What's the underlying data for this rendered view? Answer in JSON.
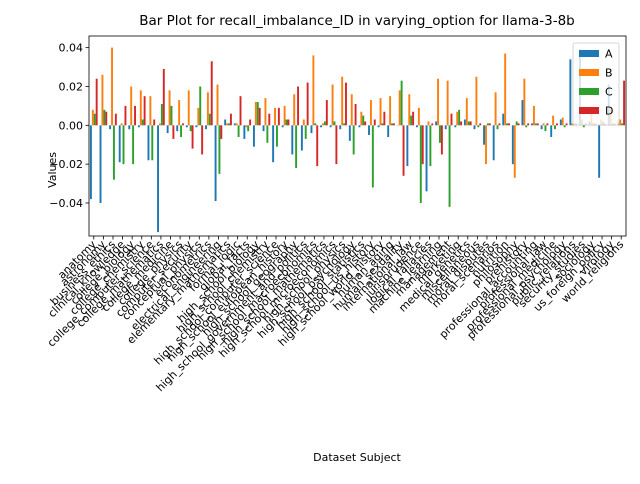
{
  "chart_data": {
    "type": "bar",
    "title": "Bar Plot for recall_imbalance_ID in varying_option for llama-3-8b",
    "xlabel": "Dataset Subject",
    "ylabel": "Values",
    "ylim": [
      -0.057,
      0.046
    ],
    "yticks": [
      -0.04,
      -0.02,
      0.0,
      0.02,
      0.04
    ],
    "ytick_labels": [
      "−0.04",
      "−0.02",
      "0.00",
      "0.02",
      "0.04"
    ],
    "legend_position": "upper right",
    "categories": [
      "anatomy",
      "astronomy",
      "business_ethics",
      "clinical_knowledge",
      "college_biology",
      "college_chemistry",
      "college_computer_science",
      "college_mathematics",
      "college_medicine",
      "college_physics",
      "computer_security",
      "conceptual_physics",
      "econometrics",
      "electrical_engineering",
      "elementary_mathematics",
      "formal_logic",
      "global_facts",
      "high_school_biology",
      "high_school_chemistry",
      "high_school_computer_science",
      "high_school_european_history",
      "high_school_geography",
      "high_school_government_and_politics",
      "high_school_macroeconomics",
      "high_school_mathematics",
      "high_school_microeconomics",
      "high_school_physics",
      "high_school_psychology",
      "high_school_statistics",
      "high_school_us_history",
      "high_school_world_history",
      "human_aging",
      "human_sexuality",
      "international_law",
      "jurisprudence",
      "logical_fallacies",
      "machine_learning",
      "management",
      "marketing",
      "medical_genetics",
      "miscellaneous",
      "moral_disputes",
      "moral_scenarios",
      "nutrition",
      "philosophy",
      "prehistory",
      "professional_accounting",
      "professional_law",
      "professional_medicine",
      "professional_psychology",
      "public_relations",
      "security_studies",
      "sociology",
      "us_foreign_policy",
      "virology",
      "world_religions"
    ],
    "series": [
      {
        "name": "A",
        "color": "#1f77b4",
        "values": [
          -0.038,
          -0.04,
          -0.002,
          -0.019,
          -0.002,
          -0.001,
          -0.018,
          -0.055,
          -0.004,
          -0.003,
          -0.001,
          -0.001,
          -0.002,
          -0.039,
          0.003,
          0.001,
          -0.007,
          -0.011,
          -0.003,
          -0.019,
          -0.001,
          -0.015,
          -0.013,
          -0.004,
          -0.001,
          -0.001,
          -0.002,
          -0.008,
          -0.001,
          -0.005,
          -0.001,
          -0.006,
          0.0,
          -0.021,
          -0.001,
          -0.034,
          0.002,
          -0.002,
          -0.001,
          0.003,
          -0.002,
          -0.01,
          -0.018,
          0.006,
          -0.02,
          0.013,
          0.001,
          -0.002,
          -0.006,
          0.003,
          0.034,
          0.039,
          0.002,
          -0.027,
          0.021,
          0.002
        ]
      },
      {
        "name": "B",
        "color": "#ff7f0e",
        "values": [
          0.008,
          0.026,
          0.04,
          0.001,
          0.02,
          0.018,
          0.015,
          0.001,
          0.018,
          0.013,
          0.018,
          0.009,
          0.017,
          0.021,
          0.001,
          0.001,
          -0.001,
          0.012,
          0.014,
          0.009,
          0.01,
          0.016,
          0.003,
          0.036,
          0.001,
          0.021,
          0.025,
          0.016,
          0.007,
          0.013,
          0.014,
          0.015,
          0.018,
          0.016,
          0.009,
          0.002,
          0.024,
          0.023,
          0.007,
          0.014,
          0.025,
          -0.02,
          0.017,
          0.037,
          -0.027,
          0.024,
          0.01,
          0.001,
          0.005,
          0.004,
          0.001,
          0.003,
          0.009,
          0.003,
          0.009,
          0.003
        ]
      },
      {
        "name": "C",
        "color": "#2ca02c",
        "values": [
          0.006,
          0.008,
          -0.028,
          -0.02,
          -0.02,
          0.003,
          -0.018,
          0.011,
          0.01,
          -0.006,
          -0.003,
          0.02,
          0.006,
          -0.025,
          0.001,
          -0.006,
          -0.003,
          0.012,
          -0.009,
          -0.011,
          0.003,
          -0.022,
          -0.007,
          0.001,
          0.002,
          0.002,
          0.001,
          -0.015,
          0.005,
          -0.032,
          0.001,
          0.001,
          0.023,
          0.005,
          -0.04,
          -0.021,
          -0.009,
          -0.042,
          0.008,
          0.002,
          -0.001,
          0.001,
          -0.002,
          0.001,
          0.002,
          -0.001,
          0.001,
          -0.003,
          -0.002,
          -0.001,
          0.001,
          -0.001,
          0.001,
          0.002,
          0.001,
          0.001
        ]
      },
      {
        "name": "D",
        "color": "#d62728",
        "values": [
          0.024,
          0.007,
          0.006,
          0.01,
          0.01,
          0.015,
          0.003,
          0.029,
          -0.007,
          0.001,
          -0.012,
          -0.015,
          0.033,
          -0.007,
          0.006,
          0.015,
          0.003,
          0.009,
          0.006,
          0.009,
          0.003,
          0.02,
          0.022,
          -0.021,
          0.013,
          -0.02,
          0.022,
          0.011,
          0.002,
          0.003,
          0.007,
          0.001,
          -0.026,
          0.007,
          -0.02,
          0.001,
          -0.015,
          0.006,
          0.002,
          0.002,
          0.001,
          0.001,
          0.001,
          0.001,
          0.001,
          0.001,
          0.001,
          0.001,
          0.001,
          0.001,
          0.001,
          0.001,
          0.001,
          0.001,
          0.001,
          0.023
        ]
      }
    ]
  }
}
